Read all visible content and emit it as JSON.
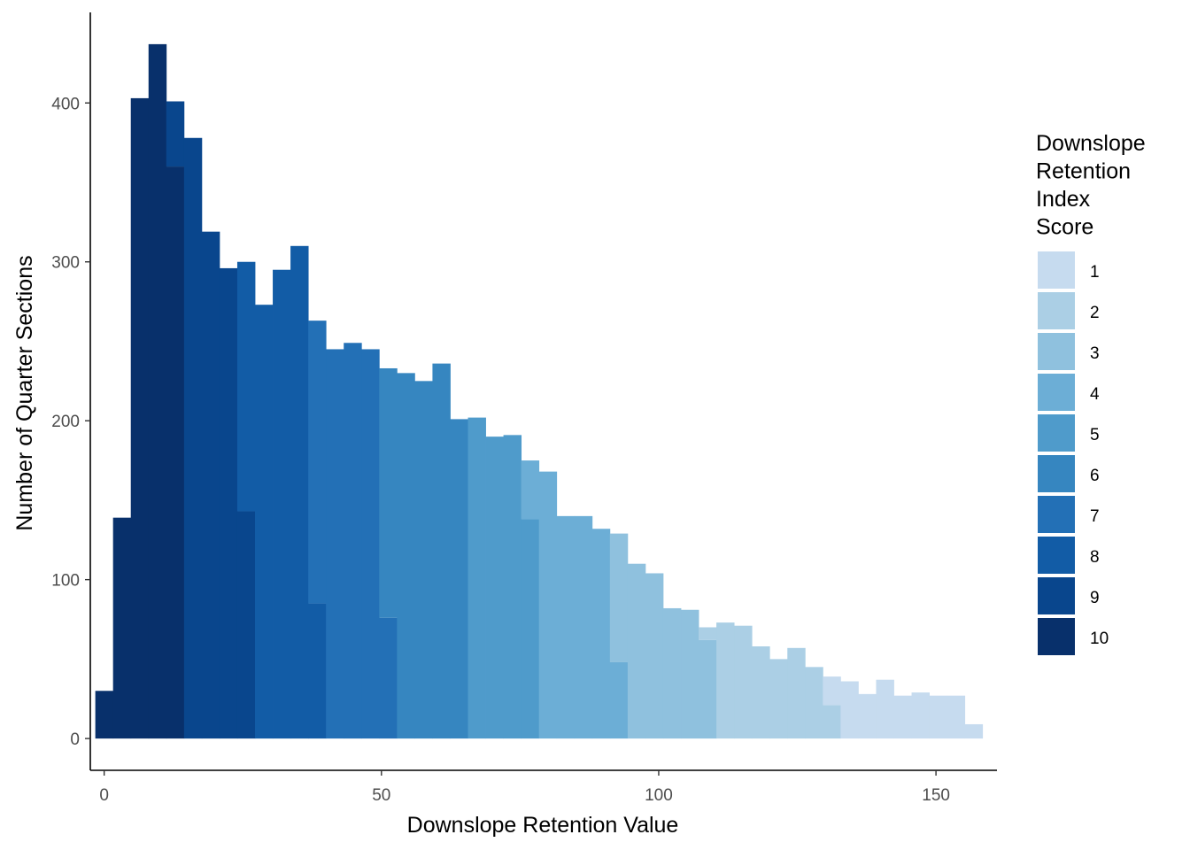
{
  "chart_data": {
    "type": "bar",
    "subtype": "stacked-histogram",
    "title": "",
    "xlabel": "Downslope Retention Value",
    "ylabel": "Number of Quarter Sections",
    "xlim": [
      -2.5,
      161
    ],
    "ylim": [
      -20,
      457
    ],
    "xticks": [
      0,
      50,
      100,
      150
    ],
    "yticks": [
      0,
      100,
      200,
      300,
      400
    ],
    "grid": false,
    "legend": {
      "title": [
        "Downslope",
        "Retention",
        "Index",
        "Score"
      ],
      "placement": "right",
      "entries": [
        "1",
        "2",
        "3",
        "4",
        "5",
        "6",
        "7",
        "8",
        "9",
        "10"
      ]
    },
    "colors": {
      "1": "#c6dbef",
      "2": "#abcfe5",
      "3": "#8fc1de",
      "4": "#6caed6",
      "5": "#4f9bcb",
      "6": "#3686c0",
      "7": "#2370b6",
      "8": "#125ca6",
      "9": "#09468d",
      "10": "#08306b"
    },
    "bins": [
      {
        "x0": -1.6,
        "x1": 1.6,
        "segments": [
          {
            "score": "10",
            "count": 30
          }
        ]
      },
      {
        "x0": 1.6,
        "x1": 4.8,
        "segments": [
          {
            "score": "10",
            "count": 139
          }
        ]
      },
      {
        "x0": 4.8,
        "x1": 8.0,
        "segments": [
          {
            "score": "10",
            "count": 403
          }
        ]
      },
      {
        "x0": 8.0,
        "x1": 11.2,
        "segments": [
          {
            "score": "10",
            "count": 437
          }
        ]
      },
      {
        "x0": 11.2,
        "x1": 14.4,
        "segments": [
          {
            "score": "10",
            "count": 360
          },
          {
            "score": "9",
            "count": 41
          }
        ]
      },
      {
        "x0": 14.4,
        "x1": 17.6,
        "segments": [
          {
            "score": "9",
            "count": 378
          }
        ]
      },
      {
        "x0": 17.6,
        "x1": 20.8,
        "segments": [
          {
            "score": "9",
            "count": 319
          }
        ]
      },
      {
        "x0": 20.8,
        "x1": 24.0,
        "segments": [
          {
            "score": "9",
            "count": 296
          }
        ]
      },
      {
        "x0": 24.0,
        "x1": 27.2,
        "segments": [
          {
            "score": "9",
            "count": 143
          },
          {
            "score": "8",
            "count": 157
          }
        ]
      },
      {
        "x0": 27.2,
        "x1": 30.4,
        "segments": [
          {
            "score": "8",
            "count": 273
          }
        ]
      },
      {
        "x0": 30.4,
        "x1": 33.6,
        "segments": [
          {
            "score": "8",
            "count": 295
          }
        ]
      },
      {
        "x0": 33.6,
        "x1": 36.8,
        "segments": [
          {
            "score": "8",
            "count": 310
          }
        ]
      },
      {
        "x0": 36.8,
        "x1": 40.0,
        "segments": [
          {
            "score": "8",
            "count": 85
          },
          {
            "score": "7",
            "count": 178
          }
        ]
      },
      {
        "x0": 40.0,
        "x1": 43.2,
        "segments": [
          {
            "score": "7",
            "count": 245
          }
        ]
      },
      {
        "x0": 43.2,
        "x1": 46.4,
        "segments": [
          {
            "score": "7",
            "count": 249
          }
        ]
      },
      {
        "x0": 46.4,
        "x1": 49.6,
        "segments": [
          {
            "score": "7",
            "count": 245
          }
        ]
      },
      {
        "x0": 49.6,
        "x1": 52.8,
        "segments": [
          {
            "score": "7",
            "count": 76
          },
          {
            "score": "6",
            "count": 157
          }
        ]
      },
      {
        "x0": 52.8,
        "x1": 56.0,
        "segments": [
          {
            "score": "6",
            "count": 230
          }
        ]
      },
      {
        "x0": 56.0,
        "x1": 59.2,
        "segments": [
          {
            "score": "6",
            "count": 225
          }
        ]
      },
      {
        "x0": 59.2,
        "x1": 62.4,
        "segments": [
          {
            "score": "6",
            "count": 236
          }
        ]
      },
      {
        "x0": 62.4,
        "x1": 65.6,
        "segments": [
          {
            "score": "6",
            "count": 201
          }
        ]
      },
      {
        "x0": 65.6,
        "x1": 68.8,
        "segments": [
          {
            "score": "5",
            "count": 202
          }
        ]
      },
      {
        "x0": 68.8,
        "x1": 72.0,
        "segments": [
          {
            "score": "5",
            "count": 190
          }
        ]
      },
      {
        "x0": 72.0,
        "x1": 75.2,
        "segments": [
          {
            "score": "5",
            "count": 191
          }
        ]
      },
      {
        "x0": 75.2,
        "x1": 78.4,
        "segments": [
          {
            "score": "5",
            "count": 138
          },
          {
            "score": "4",
            "count": 37
          }
        ]
      },
      {
        "x0": 78.4,
        "x1": 81.6,
        "segments": [
          {
            "score": "4",
            "count": 168
          }
        ]
      },
      {
        "x0": 81.6,
        "x1": 84.8,
        "segments": [
          {
            "score": "4",
            "count": 140
          }
        ]
      },
      {
        "x0": 84.8,
        "x1": 88.0,
        "segments": [
          {
            "score": "4",
            "count": 140
          }
        ]
      },
      {
        "x0": 88.0,
        "x1": 91.2,
        "segments": [
          {
            "score": "4",
            "count": 132
          }
        ]
      },
      {
        "x0": 91.2,
        "x1": 94.4,
        "segments": [
          {
            "score": "4",
            "count": 48
          },
          {
            "score": "3",
            "count": 81
          }
        ]
      },
      {
        "x0": 94.4,
        "x1": 97.6,
        "segments": [
          {
            "score": "3",
            "count": 110
          }
        ]
      },
      {
        "x0": 97.6,
        "x1": 100.8,
        "segments": [
          {
            "score": "3",
            "count": 104
          }
        ]
      },
      {
        "x0": 100.8,
        "x1": 104.0,
        "segments": [
          {
            "score": "3",
            "count": 82
          }
        ]
      },
      {
        "x0": 104.0,
        "x1": 107.2,
        "segments": [
          {
            "score": "3",
            "count": 81
          }
        ]
      },
      {
        "x0": 107.2,
        "x1": 110.4,
        "segments": [
          {
            "score": "3",
            "count": 62
          },
          {
            "score": "2",
            "count": 8
          }
        ]
      },
      {
        "x0": 110.4,
        "x1": 113.6,
        "segments": [
          {
            "score": "2",
            "count": 73
          }
        ]
      },
      {
        "x0": 113.6,
        "x1": 116.8,
        "segments": [
          {
            "score": "2",
            "count": 71
          }
        ]
      },
      {
        "x0": 116.8,
        "x1": 120.0,
        "segments": [
          {
            "score": "2",
            "count": 58
          }
        ]
      },
      {
        "x0": 120.0,
        "x1": 123.2,
        "segments": [
          {
            "score": "2",
            "count": 50
          }
        ]
      },
      {
        "x0": 123.2,
        "x1": 126.4,
        "segments": [
          {
            "score": "2",
            "count": 57
          }
        ]
      },
      {
        "x0": 126.4,
        "x1": 129.6,
        "segments": [
          {
            "score": "2",
            "count": 45
          }
        ]
      },
      {
        "x0": 129.6,
        "x1": 132.8,
        "segments": [
          {
            "score": "2",
            "count": 21
          },
          {
            "score": "1",
            "count": 18
          }
        ]
      },
      {
        "x0": 132.8,
        "x1": 136.0,
        "segments": [
          {
            "score": "1",
            "count": 36
          }
        ]
      },
      {
        "x0": 136.0,
        "x1": 139.2,
        "segments": [
          {
            "score": "1",
            "count": 28
          }
        ]
      },
      {
        "x0": 139.2,
        "x1": 142.4,
        "segments": [
          {
            "score": "1",
            "count": 37
          }
        ]
      },
      {
        "x0": 142.4,
        "x1": 145.6,
        "segments": [
          {
            "score": "1",
            "count": 27
          }
        ]
      },
      {
        "x0": 145.6,
        "x1": 148.8,
        "segments": [
          {
            "score": "1",
            "count": 29
          }
        ]
      },
      {
        "x0": 148.8,
        "x1": 152.0,
        "segments": [
          {
            "score": "1",
            "count": 27
          }
        ]
      },
      {
        "x0": 152.0,
        "x1": 155.2,
        "segments": [
          {
            "score": "1",
            "count": 27
          }
        ]
      },
      {
        "x0": 155.2,
        "x1": 158.4,
        "segments": [
          {
            "score": "1",
            "count": 9
          }
        ]
      }
    ]
  }
}
